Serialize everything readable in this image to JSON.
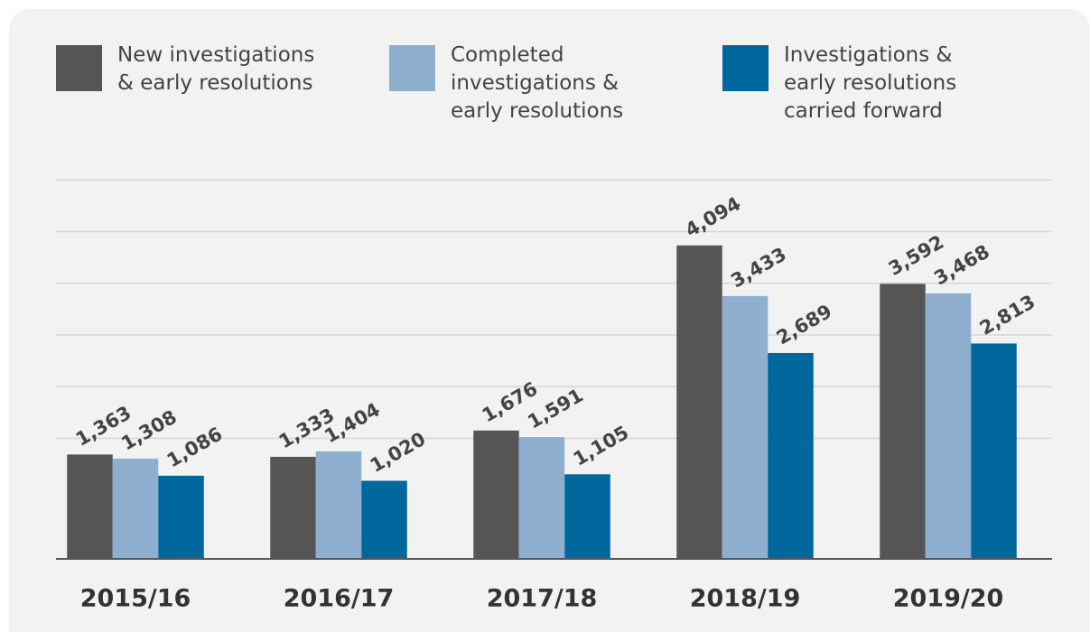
{
  "chart_data": {
    "type": "bar",
    "categories": [
      "2015/16",
      "2016/17",
      "2017/18",
      "2018/19",
      "2019/20"
    ],
    "series": [
      {
        "name": "New investigations & early resolutions",
        "color": "#555555",
        "values": [
          1363,
          1333,
          1676,
          4094,
          3592
        ],
        "value_labels": [
          "1,363",
          "1,333",
          "1,676",
          "4,094",
          "3,592"
        ]
      },
      {
        "name": "Completed investigations & early resolutions",
        "color": "#8fafd0",
        "values": [
          1308,
          1404,
          1591,
          3433,
          3468
        ],
        "value_labels": [
          "1,308",
          "1,404",
          "1,591",
          "3,433",
          "3,468"
        ]
      },
      {
        "name": "Investigations & early resolutions carried forward",
        "color": "#00679d",
        "values": [
          1086,
          1020,
          1105,
          2689,
          2813
        ],
        "value_labels": [
          "1,086",
          "1,020",
          "1,105",
          "2,689",
          "2,813"
        ]
      }
    ],
    "ylim": [
      0,
      5000
    ],
    "yticks": [
      1575,
      2250,
      2925,
      3600,
      4275,
      4950
    ],
    "grid": true
  }
}
